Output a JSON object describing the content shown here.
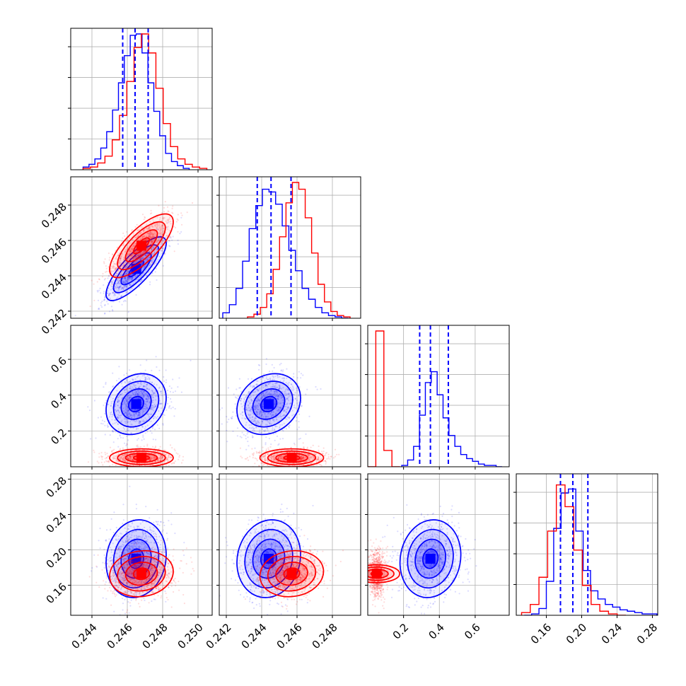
{
  "chart_data": {
    "type": "corner",
    "n_params": 4,
    "colors": {
      "blue": "#0000ff",
      "red": "#ff0000",
      "grid": "#b0b0b0",
      "frame": "#000000"
    },
    "quantiles": {
      "color": "#0000ff",
      "style": "dashed",
      "param_0": [
        0.24574,
        0.24644,
        0.24718
      ],
      "param_1": [
        0.24375,
        0.24453,
        0.24566
      ],
      "param_2": [
        0.29,
        0.35,
        0.45
      ],
      "param_3": [
        0.176,
        0.19,
        0.207
      ]
    },
    "axes": {
      "param_0": {
        "range": [
          0.2428,
          0.2508
        ],
        "ticks": [
          "0.244",
          "0.246",
          "0.248",
          "0.250"
        ]
      },
      "param_1": {
        "range": [
          0.2416,
          0.2496
        ],
        "ticks": [
          "0.242",
          "0.244",
          "0.246",
          "0.248"
        ]
      },
      "param_2": {
        "range": [
          0.0,
          0.79
        ],
        "ticks": [
          "0.2",
          "0.4",
          "0.6"
        ]
      },
      "param_3": {
        "range": [
          0.126,
          0.286
        ],
        "ticks": [
          "0.16",
          "0.20",
          "0.24",
          "0.28"
        ]
      }
    },
    "hist_density_ticks": 4,
    "series": [
      {
        "name": "blue",
        "color": "#0000ff",
        "hist": [
          {
            "param": 0,
            "edges_range": [
              0.2435,
              0.2495
            ],
            "counts": [
              2,
              4,
              8,
              16,
              28,
              44,
              64,
              84,
              99,
              100,
              86,
              64,
              43,
              25,
              12,
              6,
              3,
              1
            ]
          },
          {
            "param": 1,
            "edges_range": [
              0.2418,
              0.2489
            ],
            "counts": [
              4,
              10,
              22,
              42,
              66,
              83,
              95,
              93,
              84,
              68,
              50,
              35,
              22,
              14,
              8,
              4,
              2,
              1,
              0
            ]
          },
          {
            "param": 2,
            "edges_range": [
              0.19,
              0.75
            ],
            "counts": [
              1,
              5,
              15,
              38,
              62,
              70,
              53,
              36,
              23,
              15,
              9,
              6,
              4,
              2,
              1,
              1,
              0
            ]
          },
          {
            "param": 3,
            "edges_range": [
              0.135,
              0.285
            ],
            "counts": [
              0,
              1,
              5,
              25,
              64,
              90,
              93,
              62,
              33,
              18,
              12,
              8,
              6,
              4,
              3,
              2,
              1,
              1
            ]
          }
        ],
        "mean": [
          0.2465,
          0.2444,
          0.35,
          0.19
        ],
        "sd": [
          0.00085,
          0.0009,
          0.085,
          0.022
        ],
        "corr": {
          "0-1": 0.8,
          "0-2": 0.2,
          "1-2": 0.2,
          "0-3": 0.1,
          "1-3": 0.1,
          "2-3": 0.1
        }
      },
      {
        "name": "red",
        "color": "#ff0000",
        "hist": [
          {
            "param": 0,
            "edges_range": [
              0.2435,
              0.2505
            ],
            "counts": [
              1,
              2,
              5,
              10,
              22,
              40,
              65,
              90,
              100,
              86,
              60,
              34,
              17,
              8,
              4,
              2,
              1
            ]
          },
          {
            "param": 1,
            "edges_range": [
              0.2432,
              0.249
            ],
            "counts": [
              1,
              3,
              8,
              18,
              36,
              60,
              85,
              100,
              95,
              74,
              48,
              25,
              12,
              5,
              2,
              1
            ]
          },
          {
            "param": 2,
            "edges_range": [
              0.0,
              0.18
            ],
            "counts": [
              0,
              100,
              12,
              0
            ]
          },
          {
            "param": 3,
            "edges_range": [
              0.132,
              0.25
            ],
            "counts": [
              2,
              8,
              28,
              62,
              96,
              80,
              48,
              22,
              8,
              3,
              1,
              0
            ]
          }
        ],
        "mean": [
          0.2468,
          0.2457,
          0.05,
          0.173
        ],
        "sd": [
          0.0009,
          0.0009,
          0.025,
          0.013
        ],
        "corr": {
          "0-1": 0.75,
          "0-2": 0.0,
          "1-2": 0.0,
          "0-3": 0.1,
          "1-3": 0.1,
          "2-3": 0.0
        }
      }
    ],
    "contour_levels_sigma": [
      0.5,
      1.0,
      1.5,
      2.0
    ]
  }
}
